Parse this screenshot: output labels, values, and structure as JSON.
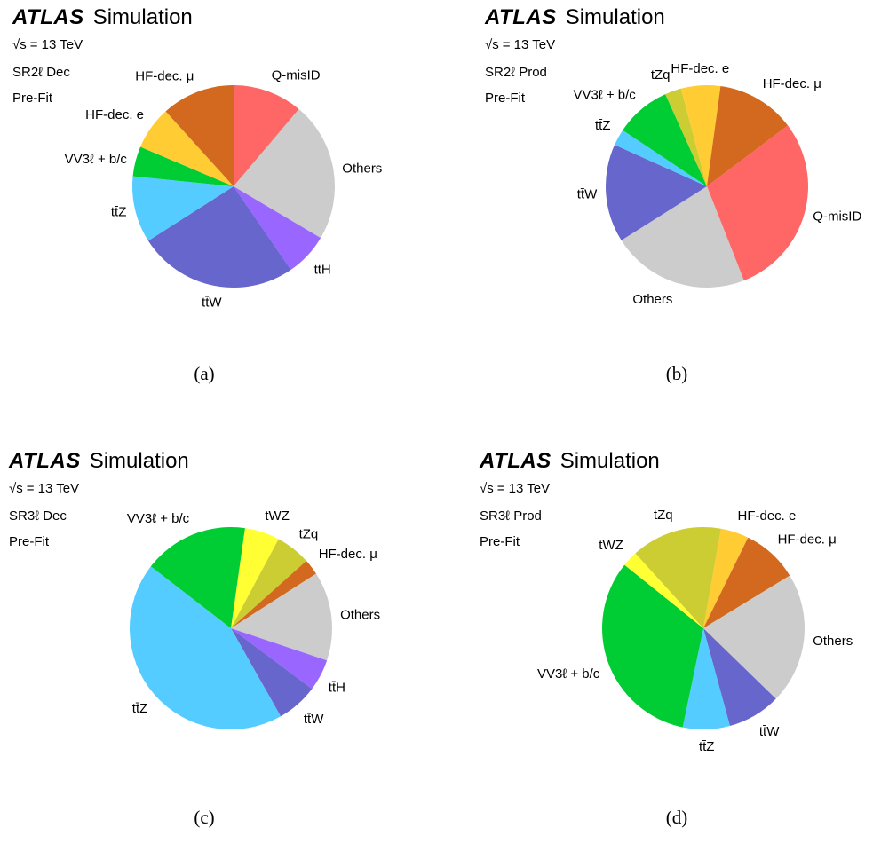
{
  "experiment": "ATLAS",
  "experiment_suffix": "Simulation",
  "sqrt_symbol": "√",
  "sqrt_var": "s",
  "energy": "= 13 TeV",
  "chart_data": [
    {
      "type": "pie",
      "caption": "(a)",
      "region": "SR2ℓ Dec",
      "fit": "Pre-Fit",
      "slices": [
        {
          "name": "Q-misID",
          "value": 10.5,
          "color": "#ff6666"
        },
        {
          "name": "Others",
          "value": 21,
          "color": "#cccccc"
        },
        {
          "name": "tt̄H",
          "value": 6.5,
          "color": "#9966ff"
        },
        {
          "name": "tt̄W",
          "value": 24,
          "color": "#6666cc"
        },
        {
          "name": "tt̄Z",
          "value": 10,
          "color": "#55ccff"
        },
        {
          "name": "VV3ℓ + b/c",
          "value": 4.5,
          "color": "#00cc33"
        },
        {
          "name": "HF-dec. e",
          "value": 6.5,
          "color": "#ffcc33"
        },
        {
          "name": "HF-dec. μ",
          "value": 11,
          "color": "#d2691e"
        }
      ]
    },
    {
      "type": "pie",
      "caption": "(b)",
      "region": "SR2ℓ Prod",
      "fit": "Pre-Fit",
      "slices": [
        {
          "name": "Q-misID",
          "value": 28,
          "color": "#ff6666"
        },
        {
          "name": "Others",
          "value": 21,
          "color": "#cccccc"
        },
        {
          "name": "tt̄W",
          "value": 15,
          "color": "#6666cc"
        },
        {
          "name": "tt̄Z",
          "value": 2.5,
          "color": "#55ccff"
        },
        {
          "name": "VV3ℓ + b/c",
          "value": 8.5,
          "color": "#00cc33"
        },
        {
          "name": "tZq",
          "value": 2.5,
          "color": "#cccc33"
        },
        {
          "name": "HF-dec. e",
          "value": 6,
          "color": "#ffcc33"
        },
        {
          "name": "HF-dec. μ",
          "value": 12,
          "color": "#d2691e"
        }
      ]
    },
    {
      "type": "pie",
      "caption": "(c)",
      "region": "SR3ℓ Dec",
      "fit": "Pre-Fit",
      "slices": [
        {
          "name": "tWZ",
          "value": 5.5,
          "color": "#ffff33"
        },
        {
          "name": "tZq",
          "value": 5.5,
          "color": "#cccc33"
        },
        {
          "name": "HF-dec. μ",
          "value": 2.5,
          "color": "#d2691e"
        },
        {
          "name": "Others",
          "value": 14,
          "color": "#cccccc"
        },
        {
          "name": "tt̄H",
          "value": 5,
          "color": "#9966ff"
        },
        {
          "name": "tt̄W",
          "value": 6.5,
          "color": "#6666cc"
        },
        {
          "name": "tt̄Z",
          "value": 43,
          "color": "#55ccff"
        },
        {
          "name": "VV3ℓ + b/c",
          "value": 16.5,
          "color": "#00cc33"
        }
      ]
    },
    {
      "type": "pie",
      "caption": "(d)",
      "region": "SR3ℓ Prod",
      "fit": "Pre-Fit",
      "slices": [
        {
          "name": "HF-dec. e",
          "value": 4.5,
          "color": "#ffcc33"
        },
        {
          "name": "HF-dec. μ",
          "value": 9,
          "color": "#d2691e"
        },
        {
          "name": "Others",
          "value": 21,
          "color": "#cccccc"
        },
        {
          "name": "tt̄W",
          "value": 8.5,
          "color": "#6666cc"
        },
        {
          "name": "tt̄Z",
          "value": 7.5,
          "color": "#55ccff"
        },
        {
          "name": "VV3ℓ + b/c",
          "value": 32.5,
          "color": "#00cc33"
        },
        {
          "name": "tWZ",
          "value": 2.5,
          "color": "#ffff33"
        },
        {
          "name": "tZq",
          "value": 14.5,
          "color": "#cccc33"
        }
      ]
    }
  ]
}
